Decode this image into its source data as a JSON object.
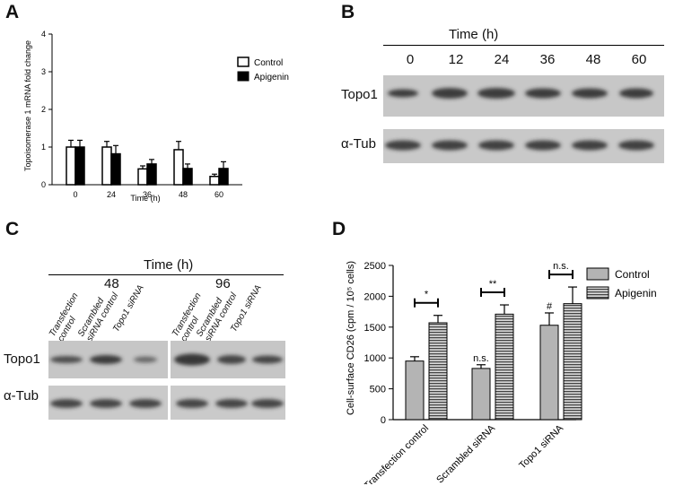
{
  "panels": {
    "a": {
      "letter": "A"
    },
    "b": {
      "letter": "B"
    },
    "c": {
      "letter": "C"
    },
    "d": {
      "letter": "D"
    }
  },
  "colors": {
    "control_bar": "#ffffff",
    "apigenin_bar": "#000000",
    "gray_bar": "#b4b4b4",
    "blot_bg": "#c9c9c9",
    "band": "#2f2f2f"
  },
  "chart_data": [
    {
      "panel": "A",
      "type": "bar",
      "ylabel": "Topoisomerase 1 mRNA fold change",
      "xlabel": "Time (h)",
      "categories": [
        "0",
        "24",
        "36",
        "48",
        "60"
      ],
      "ylim": [
        0,
        4
      ],
      "yticks": [
        "0",
        "1",
        "2",
        "3",
        "4"
      ],
      "legend_position": "right",
      "series": [
        {
          "name": "Control",
          "values": [
            1.0,
            1.0,
            0.42,
            0.93,
            0.22
          ],
          "errors": [
            0.18,
            0.15,
            0.08,
            0.22,
            0.06
          ]
        },
        {
          "name": "Apigenin",
          "values": [
            1.0,
            0.82,
            0.55,
            0.43,
            0.43
          ],
          "errors": [
            0.18,
            0.22,
            0.12,
            0.12,
            0.18
          ]
        }
      ]
    },
    {
      "panel": "D",
      "type": "bar",
      "ylabel": "Cell-surface CD26 (cpm / 10⁵ cells)",
      "categories": [
        "Transfection control",
        "Scrambled siRNA",
        "Topo1 siRNA"
      ],
      "ylim": [
        0,
        2500
      ],
      "yticks": [
        "0",
        "500",
        "1000",
        "1500",
        "2000",
        "2500"
      ],
      "legend_position": "right",
      "series": [
        {
          "name": "Control",
          "values": [
            950,
            830,
            1530
          ],
          "errors": [
            70,
            60,
            200
          ]
        },
        {
          "name": "Apigenin",
          "values": [
            1570,
            1710,
            1880
          ],
          "errors": [
            120,
            150,
            270
          ]
        }
      ],
      "annotations": {
        "brackets": [
          "*",
          "**",
          "n.s."
        ],
        "above_control_bars": [
          "",
          "n.s.",
          "#"
        ]
      }
    }
  ],
  "blot_b": {
    "title": "Time (h)",
    "times": [
      "0",
      "12",
      "24",
      "36",
      "48",
      "60"
    ],
    "rows": [
      "Topo1",
      "α-Tub"
    ]
  },
  "blot_c": {
    "title": "Time (h)",
    "time_groups": [
      "48",
      "96"
    ],
    "lanes": [
      {
        "l1": "Transfection",
        "l2": "control"
      },
      {
        "l1": "Scrambled",
        "l2": "siRNA control"
      },
      {
        "l1": "Topo1 siRNA",
        "l2": ""
      },
      {
        "l1": "Transfection",
        "l2": "control"
      },
      {
        "l1": "Scrambled",
        "l2": "siRNA control"
      },
      {
        "l1": "Topo1 siRNA",
        "l2": ""
      }
    ],
    "rows": [
      "Topo1",
      "α-Tub"
    ]
  }
}
